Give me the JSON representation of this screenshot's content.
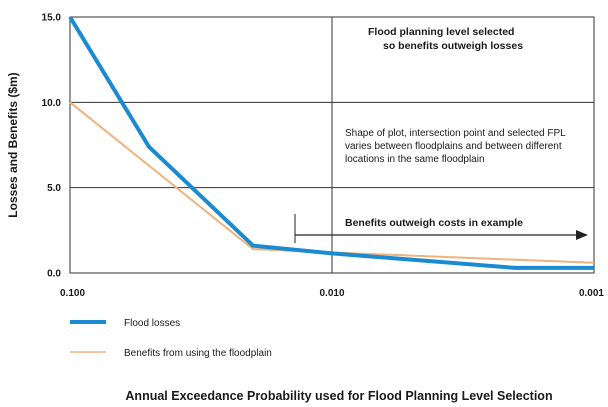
{
  "chart_data": {
    "type": "line",
    "xscale": "log-reversed",
    "xlim": [
      0.1,
      0.001
    ],
    "ylim": [
      0,
      15
    ],
    "grid": true,
    "xlabel": "Annual Exceedance Probability used for Flood Planning Level Selection",
    "ylabel": "Losses and Benefits ($m)",
    "x_ticks": [
      {
        "value": 0.1,
        "label": "0.100"
      },
      {
        "value": 0.01,
        "label": "0.010"
      },
      {
        "value": 0.001,
        "label": "0.001"
      }
    ],
    "y_ticks": [
      {
        "value": 0,
        "label": "0.0"
      },
      {
        "value": 5,
        "label": "5.0"
      },
      {
        "value": 10,
        "label": "10.0"
      },
      {
        "value": 15,
        "label": "15.0"
      }
    ],
    "series": [
      {
        "name": "Flood losses",
        "color": "#1a8bd0",
        "points": [
          {
            "x": 0.1,
            "y": 15.0
          },
          {
            "x": 0.05,
            "y": 7.4
          },
          {
            "x": 0.02,
            "y": 1.6
          },
          {
            "x": 0.01,
            "y": 1.15
          },
          {
            "x": 0.002,
            "y": 0.3
          },
          {
            "x": 0.001,
            "y": 0.3
          }
        ]
      },
      {
        "name": "Benefits from using the floodplain",
        "color": "#f0b27a",
        "points": [
          {
            "x": 0.1,
            "y": 10.0
          },
          {
            "x": 0.02,
            "y": 1.4
          },
          {
            "x": 0.01,
            "y": 1.2
          },
          {
            "x": 0.001,
            "y": 0.6
          }
        ]
      }
    ],
    "annotations": {
      "fpl_note_line1": "Flood planning level selected",
      "fpl_note_line2": "so benefits outweigh losses",
      "shape_note_line1": "Shape of plot, intersection point and selected FPL",
      "shape_note_line2": "varies between floodplains and between different",
      "shape_note_line3": "locations in the same floodplain",
      "benefits_arrow_label": "Benefits outweigh costs in example"
    }
  }
}
